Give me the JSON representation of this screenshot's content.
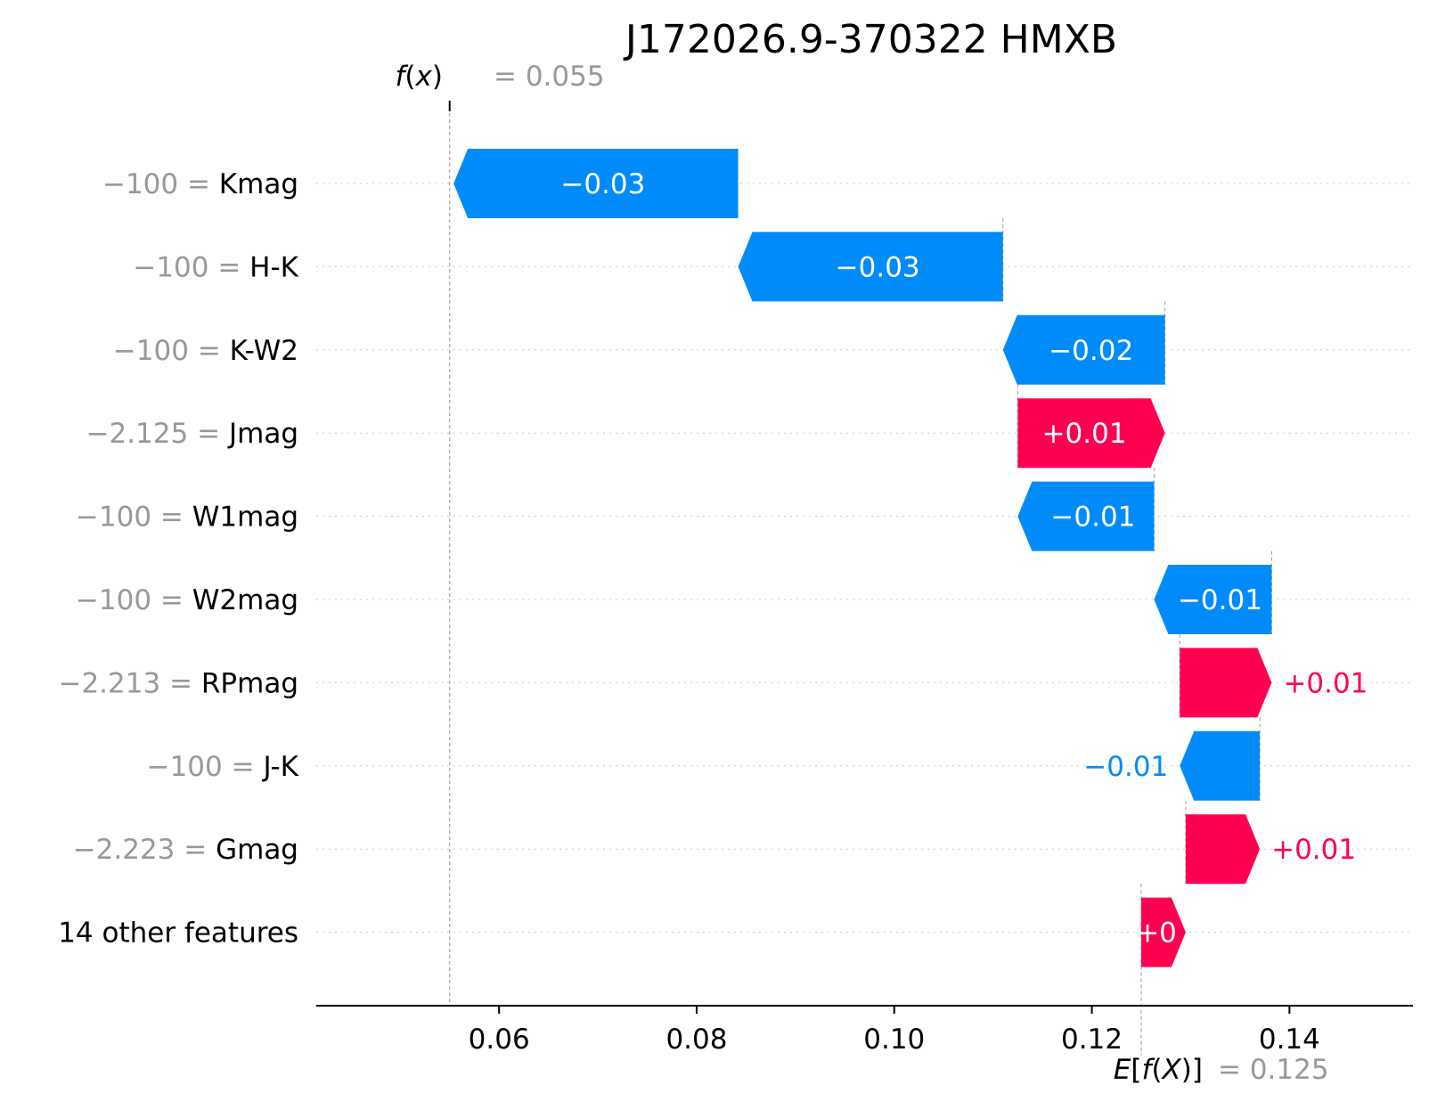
{
  "chart_data": {
    "type": "waterfall",
    "title": "J172026.9-370322 HMXB",
    "fx": {
      "label_prefix": "f",
      "label_var": "x",
      "value_text": "= 0.055",
      "value": 0.055
    },
    "base": {
      "label_prefix": "E[",
      "label_f": "f",
      "label_var": "X",
      "label_suffix": ")]",
      "value_text": "= 0.125",
      "value": 0.125
    },
    "xlim": [
      0.0415,
      0.1525
    ],
    "xticks": [
      0.06,
      0.08,
      0.1,
      0.12,
      0.14
    ],
    "xtick_labels": [
      "0.06",
      "0.08",
      "0.10",
      "0.12",
      "0.14"
    ],
    "features": [
      {
        "value": "−100 = ",
        "name": "Kmag",
        "start": 0.0842,
        "end": 0.0554,
        "label": "−0.03"
      },
      {
        "value": "−100 = ",
        "name": "H-K",
        "start": 0.111,
        "end": 0.0842,
        "label": "−0.03"
      },
      {
        "value": "−100 = ",
        "name": "K-W2",
        "start": 0.1274,
        "end": 0.111,
        "label": "−0.02"
      },
      {
        "value": "−2.125 = ",
        "name": "Jmag",
        "start": 0.1125,
        "end": 0.1274,
        "label": "+0.01"
      },
      {
        "value": "−100 = ",
        "name": "W1mag",
        "start": 0.1263,
        "end": 0.1125,
        "label": "−0.01"
      },
      {
        "value": "−100 = ",
        "name": "W2mag",
        "start": 0.1382,
        "end": 0.1263,
        "label": "−0.01"
      },
      {
        "value": "−2.213 = ",
        "name": "RPmag",
        "start": 0.1289,
        "end": 0.1382,
        "label": "+0.01"
      },
      {
        "value": "−100 = ",
        "name": "J-K",
        "start": 0.137,
        "end": 0.1289,
        "label": "−0.01"
      },
      {
        "value": "−2.223 = ",
        "name": "Gmag",
        "start": 0.1295,
        "end": 0.137,
        "label": "+0.01"
      },
      {
        "value": "",
        "name": "14 other features",
        "start": 0.125,
        "end": 0.1295,
        "label": "+0"
      }
    ],
    "colors": {
      "positive": "#ff0051",
      "negative": "#008bfb",
      "guide": "#999999",
      "grid": "#cccccc"
    }
  }
}
